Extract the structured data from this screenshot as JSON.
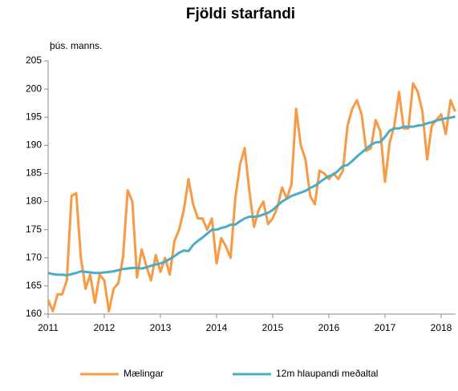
{
  "chart_data": {
    "type": "line",
    "title": "Fjöldi starfandi",
    "ylabel": "þús. manns.",
    "x": [
      2011,
      2011.083,
      2011.167,
      2011.25,
      2011.333,
      2011.417,
      2011.5,
      2011.583,
      2011.667,
      2011.75,
      2011.833,
      2011.917,
      2012,
      2012.083,
      2012.167,
      2012.25,
      2012.333,
      2012.417,
      2012.5,
      2012.583,
      2012.667,
      2012.75,
      2012.833,
      2012.917,
      2013,
      2013.083,
      2013.167,
      2013.25,
      2013.333,
      2013.417,
      2013.5,
      2013.583,
      2013.667,
      2013.75,
      2013.833,
      2013.917,
      2014,
      2014.083,
      2014.167,
      2014.25,
      2014.333,
      2014.417,
      2014.5,
      2014.583,
      2014.667,
      2014.75,
      2014.833,
      2014.917,
      2015,
      2015.083,
      2015.167,
      2015.25,
      2015.333,
      2015.417,
      2015.5,
      2015.583,
      2015.667,
      2015.75,
      2015.833,
      2015.917,
      2016,
      2016.083,
      2016.167,
      2016.25,
      2016.333,
      2016.417,
      2016.5,
      2016.583,
      2016.667,
      2016.75,
      2016.833,
      2016.917,
      2017,
      2017.083,
      2017.167,
      2017.25,
      2017.333,
      2017.417,
      2017.5,
      2017.583,
      2017.667,
      2017.75,
      2017.833,
      2017.917,
      2018,
      2018.083,
      2018.167,
      2018.25
    ],
    "series": [
      {
        "name": "Mælingar",
        "color": "#f79a43",
        "values": [
          162.5,
          160.5,
          163.5,
          163.5,
          166,
          181,
          181.5,
          170,
          164.5,
          167,
          162,
          167,
          166,
          160.5,
          164.5,
          165.5,
          170,
          182,
          180,
          166.5,
          171.5,
          168.5,
          166,
          170.5,
          167.5,
          170,
          167,
          173,
          175,
          178.5,
          184,
          179.5,
          177,
          177,
          175,
          177,
          169,
          173.5,
          172,
          170,
          180.5,
          186.5,
          189.5,
          182,
          175.5,
          178.5,
          180,
          176,
          177,
          179,
          182.5,
          180.5,
          183,
          196.5,
          190,
          187.5,
          181,
          179.5,
          185.5,
          185,
          184,
          185,
          184,
          185.5,
          193.5,
          196.5,
          198,
          195.5,
          189,
          189.5,
          194.5,
          192.5,
          183.5,
          190.5,
          193.5,
          199.5,
          193,
          193,
          201,
          199.5,
          196,
          187.5,
          193.5,
          194.5,
          195.5,
          192,
          198,
          196
        ]
      },
      {
        "name": "12m hlaupandi meðaltal",
        "color": "#4bacc6",
        "values": [
          167.3,
          167.1,
          167,
          167,
          166.9,
          167.1,
          167.3,
          167.6,
          167.5,
          167.4,
          167.3,
          167.3,
          167.4,
          167.5,
          167.6,
          167.8,
          168,
          168.1,
          168.2,
          168.2,
          168.1,
          168.3,
          168.6,
          168.8,
          169,
          169.3,
          169.8,
          170.3,
          170.9,
          171.3,
          171.2,
          172.3,
          173,
          173.6,
          174.3,
          175,
          175,
          175.3,
          175.5,
          175.9,
          175.9,
          176.5,
          177,
          177.3,
          177.3,
          177.4,
          177.7,
          178,
          178.5,
          179.3,
          180,
          180.5,
          181,
          181.3,
          181.6,
          181.9,
          182.4,
          182.8,
          183.4,
          184,
          184.5,
          184.8,
          185.5,
          186.3,
          186.5,
          187.2,
          188,
          188.7,
          189.4,
          190.1,
          190.5,
          190.6,
          191.5,
          192.6,
          193,
          193,
          193.3,
          193.3,
          193.3,
          193.5,
          193.6,
          193.9,
          194.1,
          194.4,
          194.6,
          194.8,
          194.9,
          195.1
        ]
      }
    ],
    "xlim": [
      2011,
      2018.25
    ],
    "xticks": [
      2011,
      2012,
      2013,
      2014,
      2015,
      2016,
      2017,
      2018
    ],
    "ylim": [
      160,
      205
    ],
    "yticks": [
      160,
      165,
      170,
      175,
      180,
      185,
      190,
      195,
      200,
      205
    ],
    "legend": "bottom"
  }
}
